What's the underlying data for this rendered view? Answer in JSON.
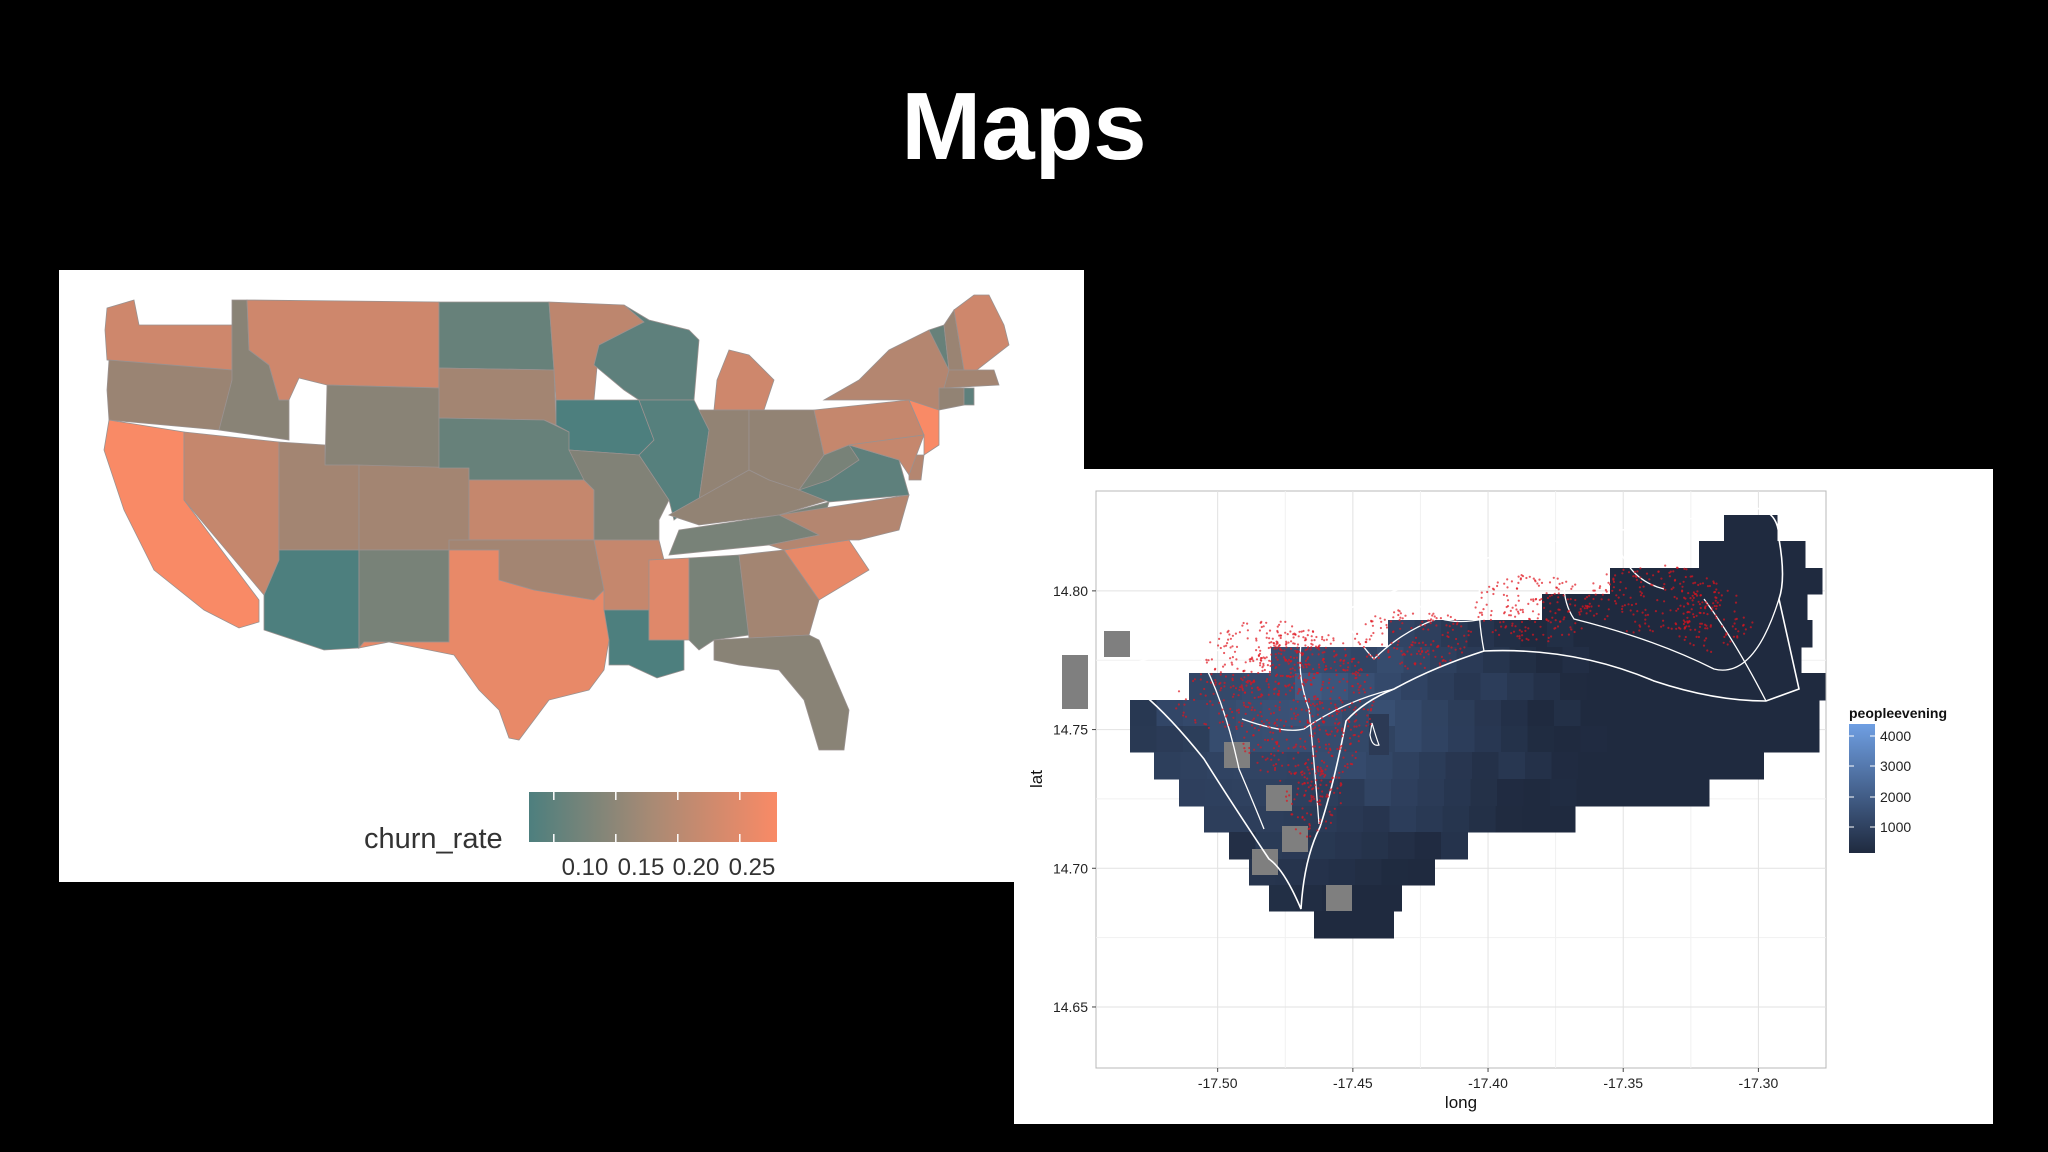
{
  "slide": {
    "title": "Maps"
  },
  "us_map": {
    "legend_title": "churn_rate",
    "legend_ticks": [
      "0.10",
      "0.15",
      "0.20",
      "0.25"
    ],
    "colors": {
      "low": "#4d7f7e",
      "high": "#f98a66"
    }
  },
  "chart_data": [
    {
      "type": "heatmap",
      "title": "",
      "subtitle": "",
      "legend": {
        "title": "churn_rate",
        "position": "bottom",
        "range": [
          0.08,
          0.28
        ],
        "ticks": [
          0.1,
          0.15,
          0.2,
          0.25
        ]
      },
      "colors": {
        "low": "#4d7f7e",
        "high": "#f98a66"
      },
      "series": [
        {
          "values": [
            {
              "state": "WA",
              "churn_rate": 0.23
            },
            {
              "state": "OR",
              "churn_rate": 0.17
            },
            {
              "state": "CA",
              "churn_rate": 0.28
            },
            {
              "state": "NV",
              "churn_rate": 0.22
            },
            {
              "state": "ID",
              "churn_rate": 0.15
            },
            {
              "state": "MT",
              "churn_rate": 0.23
            },
            {
              "state": "WY",
              "churn_rate": 0.15
            },
            {
              "state": "UT",
              "churn_rate": 0.18
            },
            {
              "state": "AZ",
              "churn_rate": 0.08
            },
            {
              "state": "CO",
              "churn_rate": 0.18
            },
            {
              "state": "NM",
              "churn_rate": 0.13
            },
            {
              "state": "ND",
              "churn_rate": 0.11
            },
            {
              "state": "SD",
              "churn_rate": 0.18
            },
            {
              "state": "NE",
              "churn_rate": 0.11
            },
            {
              "state": "KS",
              "churn_rate": 0.22
            },
            {
              "state": "OK",
              "churn_rate": 0.18
            },
            {
              "state": "TX",
              "churn_rate": 0.26
            },
            {
              "state": "MN",
              "churn_rate": 0.21
            },
            {
              "state": "IA",
              "churn_rate": 0.08
            },
            {
              "state": "MO",
              "churn_rate": 0.14
            },
            {
              "state": "AR",
              "churn_rate": 0.22
            },
            {
              "state": "LA",
              "churn_rate": 0.08
            },
            {
              "state": "WI",
              "churn_rate": 0.1
            },
            {
              "state": "IL",
              "churn_rate": 0.09
            },
            {
              "state": "MI",
              "churn_rate": 0.23
            },
            {
              "state": "IN",
              "churn_rate": 0.16
            },
            {
              "state": "OH",
              "churn_rate": 0.16
            },
            {
              "state": "KY",
              "churn_rate": 0.16
            },
            {
              "state": "TN",
              "churn_rate": 0.13
            },
            {
              "state": "MS",
              "churn_rate": 0.25
            },
            {
              "state": "AL",
              "churn_rate": 0.13
            },
            {
              "state": "GA",
              "churn_rate": 0.18
            },
            {
              "state": "FL",
              "churn_rate": 0.15
            },
            {
              "state": "SC",
              "churn_rate": 0.26
            },
            {
              "state": "NC",
              "churn_rate": 0.2
            },
            {
              "state": "VA",
              "churn_rate": 0.1
            },
            {
              "state": "WV",
              "churn_rate": 0.13
            },
            {
              "state": "PA",
              "churn_rate": 0.22
            },
            {
              "state": "NY",
              "churn_rate": 0.2
            },
            {
              "state": "NJ",
              "churn_rate": 0.28
            },
            {
              "state": "DE",
              "churn_rate": 0.2
            },
            {
              "state": "MD",
              "churn_rate": 0.22
            },
            {
              "state": "VT",
              "churn_rate": 0.11
            },
            {
              "state": "NH",
              "churn_rate": 0.17
            },
            {
              "state": "ME",
              "churn_rate": 0.23
            },
            {
              "state": "MA",
              "churn_rate": 0.18
            },
            {
              "state": "CT",
              "churn_rate": 0.16
            },
            {
              "state": "RI",
              "churn_rate": 0.1
            }
          ]
        }
      ]
    },
    {
      "type": "heatmap",
      "title": "",
      "subtitle": "",
      "xlabel": "long",
      "ylabel": "lat",
      "xlim": [
        -17.545,
        -17.275
      ],
      "ylim": [
        14.628,
        14.836
      ],
      "x_ticks": [
        "-17.50",
        "-17.45",
        "-17.40",
        "-17.35",
        "-17.30"
      ],
      "y_ticks": [
        "14.65",
        "14.70",
        "14.75",
        "14.80"
      ],
      "grid": true,
      "legend": {
        "title": "peopleevening",
        "position": "right",
        "range": [
          0,
          4500
        ],
        "ticks": [
          "1000",
          "2000",
          "3000",
          "4000"
        ]
      },
      "colors": {
        "low": "#1f2a3f",
        "high": "#6f9fe3",
        "points": "#e0141e",
        "boundaries": "#ffffff",
        "na": "#7f7f7f"
      }
    }
  ]
}
